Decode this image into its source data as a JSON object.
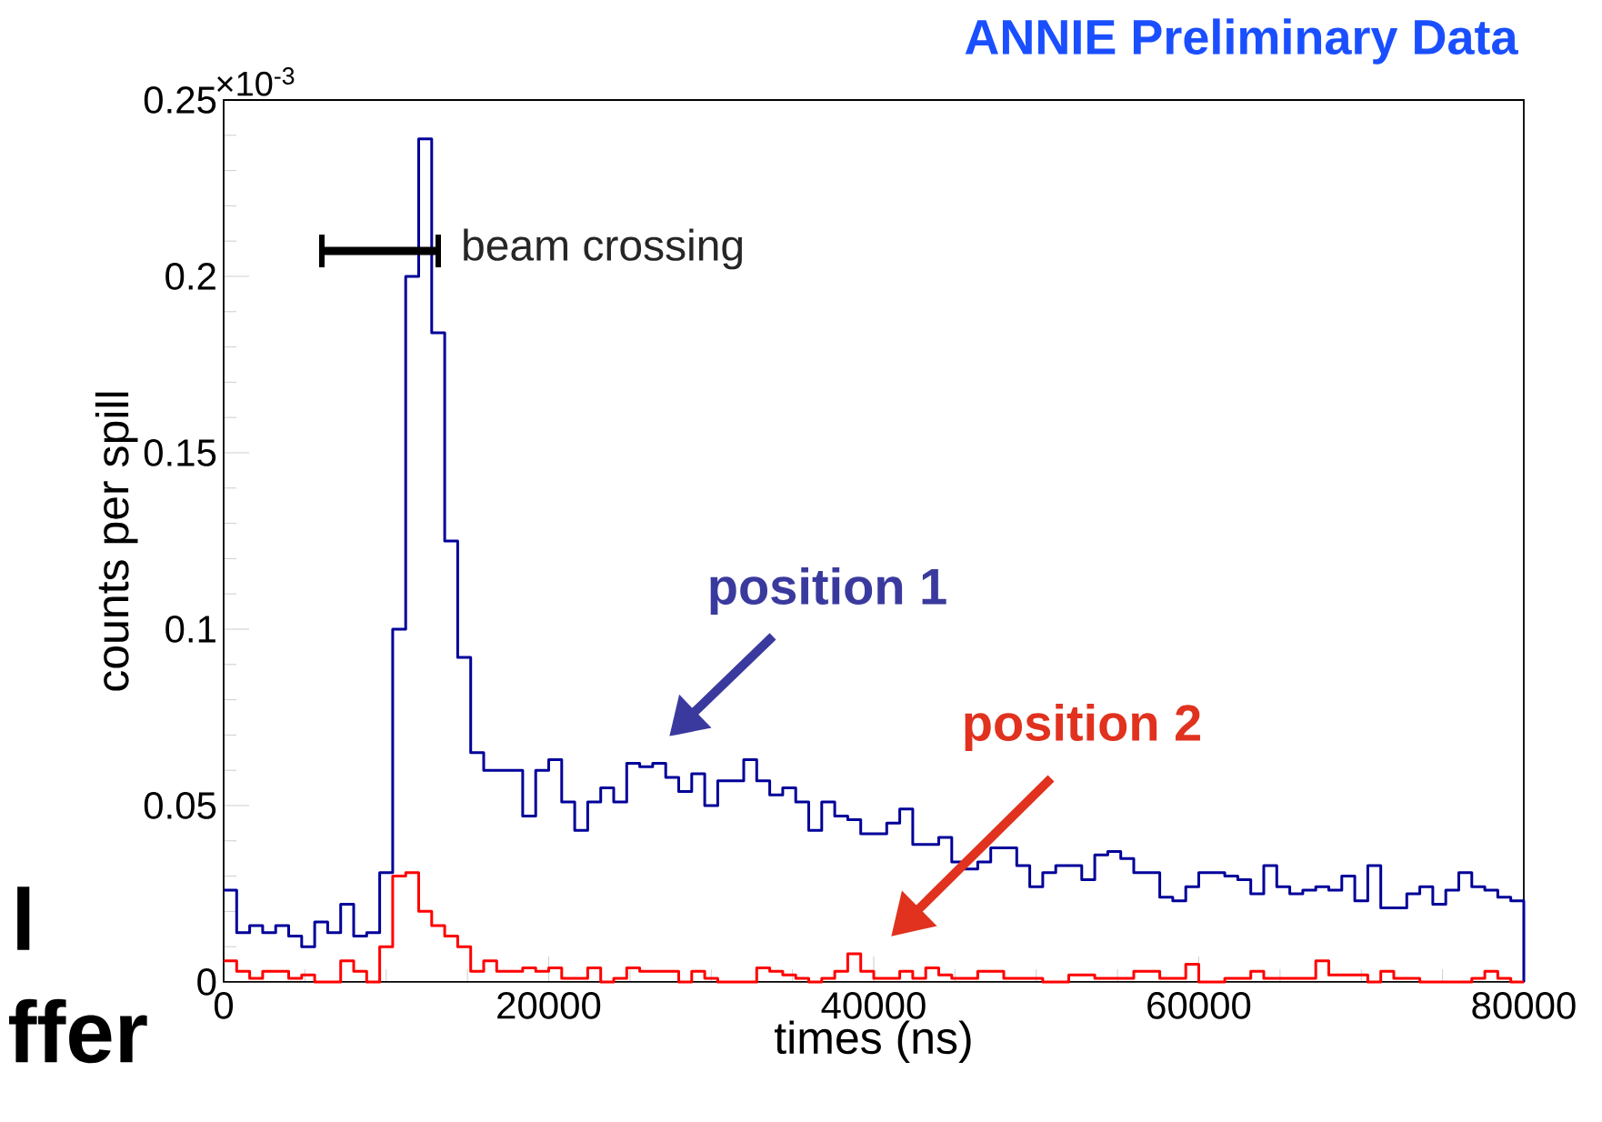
{
  "chart_data": {
    "type": "histogram",
    "title": "ANNIE Preliminary Data",
    "xlabel": "times (ns)",
    "ylabel": "counts per spill",
    "bins": [
      0,
      800,
      1600,
      2400,
      3200,
      4000,
      4800,
      5600,
      6400,
      7200,
      8000,
      8800,
      9600,
      10400,
      11200,
      12000,
      12800,
      13600,
      14400,
      15200,
      16000,
      16800,
      17600,
      18400,
      19200,
      20000,
      20800,
      21600,
      22400,
      23200,
      24000,
      24800,
      25600,
      26400,
      27200,
      28000,
      28800,
      29600,
      30400,
      31200,
      32000,
      32800,
      33600,
      34400,
      35200,
      36000,
      36800,
      37600,
      38400,
      39200,
      40000,
      40800,
      41600,
      42400,
      43200,
      44000,
      44800,
      45600,
      46400,
      47200,
      48000,
      48800,
      49600,
      50400,
      51200,
      52000,
      52800,
      53600,
      54400,
      55200,
      56000,
      56800,
      57600,
      58400,
      59200,
      60000,
      60800,
      61600,
      62400,
      63200,
      64000,
      64800,
      65600,
      66400,
      67200,
      68000,
      68800,
      69600,
      70400,
      71200,
      72000,
      72800,
      73600,
      74400,
      75200,
      76000,
      76800,
      77600,
      78400,
      79200,
      80000
    ],
    "series": [
      {
        "color": "#000099",
        "values": [
          0.026,
          0.014,
          0.016,
          0.014,
          0.016,
          0.013,
          0.01,
          0.017,
          0.014,
          0.022,
          0.013,
          0.014,
          0.031,
          0.1,
          0.2,
          0.239,
          0.184,
          0.125,
          0.092,
          0.065,
          0.06,
          0.06,
          0.06,
          0.047,
          0.06,
          0.063,
          0.051,
          0.043,
          0.051,
          0.055,
          0.051,
          0.062,
          0.061,
          0.062,
          0.058,
          0.054,
          0.059,
          0.05,
          0.057,
          0.057,
          0.063,
          0.057,
          0.053,
          0.055,
          0.051,
          0.043,
          0.051,
          0.047,
          0.046,
          0.042,
          0.042,
          0.045,
          0.049,
          0.039,
          0.039,
          0.041,
          0.034,
          0.032,
          0.034,
          0.038,
          0.038,
          0.033,
          0.027,
          0.031,
          0.033,
          0.033,
          0.029,
          0.036,
          0.037,
          0.035,
          0.031,
          0.031,
          0.024,
          0.023,
          0.027,
          0.031,
          0.031,
          0.03,
          0.029,
          0.025,
          0.033,
          0.027,
          0.025,
          0.026,
          0.027,
          0.026,
          0.03,
          0.023,
          0.033,
          0.021,
          0.021,
          0.025,
          0.027,
          0.022,
          0.026,
          0.031,
          0.027,
          0.026,
          0.024,
          0.023
        ]
      },
      {
        "color": "#ff0000",
        "values": [
          0.006,
          0.003,
          0.001,
          0.003,
          0.003,
          0.001,
          0.002,
          0,
          0,
          0.006,
          0.003,
          0,
          0.01,
          0.03,
          0.031,
          0.02,
          0.016,
          0.013,
          0.01,
          0.003,
          0.006,
          0.003,
          0.003,
          0.004,
          0.003,
          0.004,
          0.001,
          0.001,
          0.004,
          0,
          0.001,
          0.004,
          0.003,
          0.003,
          0.003,
          0,
          0.003,
          0.001,
          0,
          0,
          0,
          0.004,
          0.003,
          0.002,
          0.001,
          0,
          0.001,
          0.003,
          0.008,
          0.003,
          0.001,
          0.001,
          0.003,
          0.001,
          0.004,
          0.002,
          0.001,
          0.001,
          0.003,
          0.003,
          0.001,
          0.001,
          0.001,
          0,
          0,
          0.002,
          0.002,
          0.001,
          0.001,
          0.001,
          0.003,
          0.003,
          0.001,
          0.001,
          0.005,
          0,
          0,
          0.001,
          0.001,
          0.003,
          0.001,
          0.001,
          0.001,
          0.001,
          0.006,
          0.002,
          0.002,
          0.002,
          0,
          0.003,
          0.001,
          0.001,
          0,
          0,
          0,
          0,
          0.001,
          0.003,
          0.001,
          0
        ]
      }
    ],
    "xlim": [
      0,
      80000
    ],
    "ylim": [
      0,
      0.25
    ],
    "xticks": [
      0,
      20000,
      40000,
      60000,
      80000
    ],
    "yticks": [
      0,
      0.05,
      0.1,
      0.15,
      0.2,
      0.25
    ],
    "annotations": [
      "beam crossing",
      "position 1",
      "position 2",
      "×10$^{-3}$",
      "l",
      "ffer"
    ]
  }
}
